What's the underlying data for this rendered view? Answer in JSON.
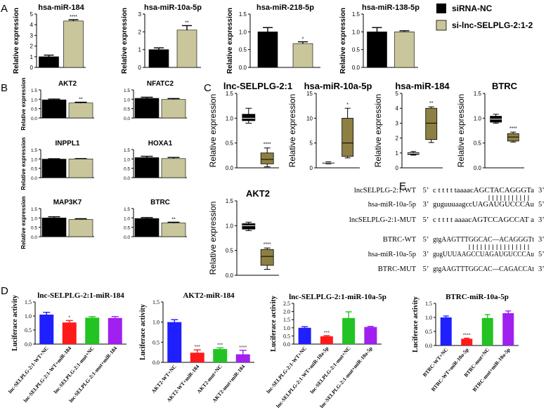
{
  "colors": {
    "siRNA": "#000000",
    "si": "#c8c69a",
    "box": "#8e8043",
    "blue": "#1f1fff",
    "red": "#ff1a1a",
    "green": "#22c322",
    "purple": "#a020f0"
  },
  "legend": {
    "items": [
      {
        "label": "siRNA-NC",
        "color": "#000000"
      },
      {
        "label": "si-lnc-SELPLG-2:1-2",
        "color": "#c8c69a"
      }
    ]
  },
  "panel_labels": [
    "A",
    "B",
    "C",
    "D",
    "E"
  ],
  "chart_data": [
    {
      "id": "A1",
      "type": "bar",
      "title": "hsa-miR-184",
      "ylabel": "Relative expression",
      "ylim": [
        0,
        5
      ],
      "yticks": [
        0,
        1,
        2,
        3,
        4,
        5
      ],
      "categories": [
        "siRNA-NC",
        "si-lnc-SELPLG-2:1-2"
      ],
      "values": [
        1.0,
        4.35
      ],
      "errors": [
        0.15,
        0.12
      ],
      "significance": [
        "",
        "****"
      ]
    },
    {
      "id": "A2",
      "type": "bar",
      "title": "hsa-miR-10a-5p",
      "ylabel": "Relative expression",
      "ylim": [
        0,
        3
      ],
      "yticks": [
        0,
        1,
        2,
        3
      ],
      "categories": [
        "siRNA-NC",
        "si-lnc-SELPLG-2:1-2"
      ],
      "values": [
        1.0,
        2.1
      ],
      "errors": [
        0.1,
        0.25
      ],
      "significance": [
        "",
        "**"
      ]
    },
    {
      "id": "A3",
      "type": "bar",
      "title": "hsa-miR-218-5p",
      "ylabel": "Relative expression",
      "ylim": [
        0,
        1.5
      ],
      "yticks": [
        "0.0",
        "0.5",
        "1.0",
        "1.5"
      ],
      "categories": [
        "siRNA-NC",
        "si-lnc-SELPLG-2:1-2"
      ],
      "values": [
        1.0,
        0.67
      ],
      "errors": [
        0.12,
        0.05
      ],
      "significance": [
        "",
        "*"
      ]
    },
    {
      "id": "A4",
      "type": "bar",
      "title": "hsa-miR-138-5p",
      "ylabel": "Relative expression",
      "ylim": [
        0,
        1.5
      ],
      "yticks": [
        "0.0",
        "0.5",
        "1.0",
        "1.5"
      ],
      "categories": [
        "siRNA-NC",
        "si-lnc-SELPLG-2:1-2"
      ],
      "values": [
        1.0,
        1.0
      ],
      "errors": [
        0.12,
        0.03
      ],
      "significance": [
        "",
        ""
      ]
    },
    {
      "id": "B1",
      "type": "bar",
      "title": "AKT2",
      "ylabel": "Relative expression",
      "ylim": [
        0,
        1.5
      ],
      "yticks": [
        "0.0",
        "0.5",
        "1.0",
        "1.5"
      ],
      "categories": [
        "siRNA-NC",
        "si-lnc-SELPLG-2:1-2"
      ],
      "values": [
        0.97,
        0.8
      ],
      "errors": [
        0.04,
        0.04
      ],
      "significance": [
        "",
        "**"
      ]
    },
    {
      "id": "B2",
      "type": "bar",
      "title": "NFATC2",
      "ylabel": "",
      "ylim": [
        0,
        1.5
      ],
      "yticks": [
        "0.0",
        "0.5",
        "1.0",
        "1.5"
      ],
      "categories": [
        "siRNA-NC",
        "si-lnc-SELPLG-2:1-2"
      ],
      "values": [
        1.05,
        0.99
      ],
      "errors": [
        0.06,
        0.05
      ],
      "significance": [
        "",
        ""
      ]
    },
    {
      "id": "B3",
      "type": "bar",
      "title": "INPPL1",
      "ylabel": "Relative expression",
      "ylim": [
        0,
        1.5
      ],
      "yticks": [
        "0.0",
        "0.5",
        "1.0",
        "1.5"
      ],
      "categories": [
        "siRNA-NC",
        "si-lnc-SELPLG-2:1-2"
      ],
      "values": [
        0.99,
        1.0
      ],
      "errors": [
        0.02,
        0.02
      ],
      "significance": [
        "",
        ""
      ]
    },
    {
      "id": "B4",
      "type": "bar",
      "title": "HOXA1",
      "ylabel": "",
      "ylim": [
        0,
        1.5
      ],
      "yticks": [
        "0.0",
        "0.5",
        "1.0",
        "1.5"
      ],
      "categories": [
        "siRNA-NC",
        "si-lnc-SELPLG-2:1-2"
      ],
      "values": [
        1.07,
        1.02
      ],
      "errors": [
        0.07,
        0.06
      ],
      "significance": [
        "",
        ""
      ]
    },
    {
      "id": "B5",
      "type": "bar",
      "title": "MAP3K7",
      "ylabel": "Relative expression",
      "ylim": [
        0,
        1.5
      ],
      "yticks": [
        "0.0",
        "0.5",
        "1.0",
        "1.5"
      ],
      "categories": [
        "siRNA-NC",
        "si-lnc-SELPLG-2:1-2"
      ],
      "values": [
        1.0,
        0.92
      ],
      "errors": [
        0.06,
        0.04
      ],
      "significance": [
        "",
        ""
      ]
    },
    {
      "id": "B6",
      "type": "bar",
      "title": "BTRC",
      "ylabel": "",
      "ylim": [
        0,
        1.5
      ],
      "yticks": [
        "0.0",
        "0.5",
        "1.0",
        "1.5"
      ],
      "categories": [
        "siRNA-NC",
        "si-lnc-SELPLG-2:1-2"
      ],
      "values": [
        0.97,
        0.73
      ],
      "errors": [
        0.05,
        0.04
      ],
      "significance": [
        "",
        "**"
      ]
    },
    {
      "id": "C1",
      "type": "box",
      "title": "lnc-SELPLG-2:1",
      "ylabel": "Relative expression",
      "ylim": [
        0,
        1.5
      ],
      "yticks": [
        "0.0",
        "0.5",
        "1.0",
        "1.5"
      ],
      "boxes": [
        {
          "min": 0.9,
          "q1": 0.95,
          "median": 1.0,
          "q3": 1.08,
          "max": 1.2,
          "color": "#000000"
        },
        {
          "min": 0.02,
          "q1": 0.08,
          "median": 0.17,
          "q3": 0.3,
          "max": 0.4,
          "color": "#8e8043"
        }
      ],
      "significance": [
        "",
        "****"
      ]
    },
    {
      "id": "C2",
      "type": "box",
      "title": "hsa-miR-10a-5p",
      "ylabel": "Relative expression",
      "ylim": [
        0,
        15
      ],
      "yticks": [
        0,
        5,
        10,
        15
      ],
      "boxes": [
        {
          "min": 0.8,
          "q1": 0.9,
          "median": 1.0,
          "q3": 1.05,
          "max": 1.2,
          "color": "#000000"
        },
        {
          "min": 2,
          "q1": 2.3,
          "median": 5,
          "q3": 10,
          "max": 12,
          "color": "#8e8043"
        }
      ],
      "significance": [
        "",
        "*"
      ]
    },
    {
      "id": "C3",
      "type": "box",
      "title": "hsa-miR-184",
      "ylabel": "Relative expression",
      "ylim": [
        0,
        5
      ],
      "yticks": [
        0,
        1,
        2,
        3,
        4,
        5
      ],
      "boxes": [
        {
          "min": 0.85,
          "q1": 0.9,
          "median": 0.97,
          "q3": 1.02,
          "max": 1.1,
          "color": "#000000"
        },
        {
          "min": 1.7,
          "q1": 1.9,
          "median": 3.0,
          "q3": 4.0,
          "max": 4.1,
          "color": "#8e8043"
        }
      ],
      "significance": [
        "",
        "**"
      ]
    },
    {
      "id": "C4",
      "type": "box",
      "title": "BTRC",
      "ylabel": "Relative expression",
      "ylim": [
        0,
        1.5
      ],
      "yticks": [
        "0.0",
        "0.5",
        "1.0",
        "1.5"
      ],
      "boxes": [
        {
          "min": 0.9,
          "q1": 0.92,
          "median": 0.98,
          "q3": 1.04,
          "max": 1.08,
          "color": "#000000"
        },
        {
          "min": 0.52,
          "q1": 0.54,
          "median": 0.62,
          "q3": 0.69,
          "max": 0.72,
          "color": "#8e8043"
        }
      ],
      "significance": [
        "",
        "****"
      ]
    },
    {
      "id": "C5",
      "type": "box",
      "title": "AKT2",
      "ylabel": "Relative expression",
      "ylim": [
        0,
        1.5
      ],
      "yticks": [
        "0.0",
        "0.5",
        "1.0",
        "1.5"
      ],
      "boxes": [
        {
          "min": 0.9,
          "q1": 0.93,
          "median": 1.0,
          "q3": 1.04,
          "max": 1.07,
          "color": "#000000"
        },
        {
          "min": 0.12,
          "q1": 0.2,
          "median": 0.38,
          "q3": 0.52,
          "max": 0.55,
          "color": "#8e8043"
        }
      ],
      "significance": [
        "",
        "****"
      ]
    },
    {
      "id": "D1",
      "type": "bar",
      "title": "lnc-SELPLG-2:1-miR-184",
      "ylabel": "Luciferace activity",
      "ylim": [
        0,
        1.5
      ],
      "yticks": [
        "0.0",
        "0.5",
        "1.0",
        "1.5"
      ],
      "categories": [
        "lnc-SELPLG-2:1-WT+NC",
        "lnc-SELPLG-2:1-WT+miR-184",
        "lnc-SELPLG-2:1-mut+NC",
        "lnc-SELPLG-2:1-mut+miR-184"
      ],
      "values": [
        1.05,
        0.77,
        0.94,
        0.93
      ],
      "errors": [
        0.08,
        0.07,
        0.04,
        0.05
      ],
      "significance": [
        "",
        "*",
        "",
        ""
      ],
      "colors": [
        "#1f1fff",
        "#ff1a1a",
        "#22c322",
        "#a020f0"
      ]
    },
    {
      "id": "D2",
      "type": "bar",
      "title": "AKT2-miR-184",
      "ylabel": "Luciferace activity",
      "ylim": [
        0,
        1.5
      ],
      "yticks": [
        "0.0",
        "0.5",
        "1.0",
        "1.5"
      ],
      "categories": [
        "AKT2-WT+NC",
        "AKT2-WT+miR-184",
        "AKT2-mut+NC",
        "AKT2-mut+miR-184"
      ],
      "values": [
        1.0,
        0.24,
        0.33,
        0.2
      ],
      "errors": [
        0.06,
        0.07,
        0.03,
        0.1
      ],
      "significance": [
        "",
        "***",
        "***",
        "****"
      ],
      "colors": [
        "#1f1fff",
        "#ff1a1a",
        "#22c322",
        "#a020f0"
      ]
    },
    {
      "id": "D3",
      "type": "bar",
      "title": "lnc-SELPLG-2:1-miR-10a-5p",
      "ylabel": "Luciferace activity",
      "ylim": [
        0,
        2.5
      ],
      "yticks": [
        "0.0",
        "0.5",
        "1.0",
        "1.5",
        "2.0",
        "2.5"
      ],
      "categories": [
        "lnc-SELPLG-2:1-WT+NC",
        "lnc-SELPLG-2:1-WT+miR-10a-5p",
        "lnc-SELPLG-2:1-mut+NC",
        "lnc-SELPLG-2:1-mut+miR-10a-5p"
      ],
      "values": [
        1.0,
        0.48,
        1.6,
        1.05
      ],
      "errors": [
        0.07,
        0.04,
        0.38,
        0.04
      ],
      "significance": [
        "",
        "***",
        "",
        ""
      ],
      "colors": [
        "#1f1fff",
        "#ff1a1a",
        "#22c322",
        "#a020f0"
      ]
    },
    {
      "id": "D4",
      "type": "bar",
      "title": "BTRC-miR-10a-5p",
      "ylabel": "Luciferace activity",
      "ylim": [
        0,
        1.5
      ],
      "yticks": [
        "0.0",
        "0.5",
        "1.0",
        "1.5"
      ],
      "categories": [
        "BTRC-WT+NC",
        "BTRC-WT+miR-10a-5p",
        "BTRC-mut+NC",
        "BTRC-mut+miR-10a-5p"
      ],
      "values": [
        1.0,
        0.24,
        0.98,
        1.15
      ],
      "errors": [
        0.05,
        0.02,
        0.12,
        0.08
      ],
      "significance": [
        "",
        "****",
        "",
        ""
      ],
      "colors": [
        "#1f1fff",
        "#ff1a1a",
        "#22c322",
        "#a020f0"
      ]
    }
  ],
  "sequences": {
    "rows": [
      {
        "name": "lncSELPLG-2:1-WT",
        "p": "5’",
        "seq": "c t t t t taaaacAGCTACAGGGTa",
        "end": "3’"
      },
      {
        "name": "hsa-miR-10a-5p",
        "p": "3’",
        "seq": "guguuuaagccUAGAUGUCCCAu",
        "end": "5’"
      },
      {
        "name": "lncSELPLG-2:1-MUT",
        "p": "5’",
        "seq": "c t t t t aaaacAGTCCAGCCAT a",
        "end": "3’"
      },
      {
        "name": "BTRC-WT",
        "p": "5’",
        "seq": "gtgAAGTTTGGCAC—ACAGGGTt",
        "end": "3’"
      },
      {
        "name": "hsa-miR-10a-5p",
        "p": "3’",
        "seq": "gugUUUAAGCCUAGAUGUCCCAu",
        "end": "5’"
      },
      {
        "name": "BTRC-MUT",
        "p": "5’",
        "seq": "gtgAAGTTTGGCAC—CAGACCAt",
        "end": "3’"
      }
    ]
  }
}
